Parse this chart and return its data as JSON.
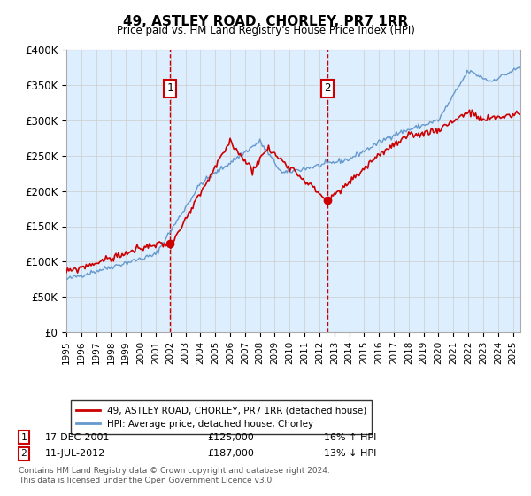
{
  "title": "49, ASTLEY ROAD, CHORLEY, PR7 1RR",
  "subtitle": "Price paid vs. HM Land Registry's House Price Index (HPI)",
  "ylim": [
    0,
    400000
  ],
  "yticks": [
    0,
    50000,
    100000,
    150000,
    200000,
    250000,
    300000,
    350000,
    400000
  ],
  "ytick_labels": [
    "£0",
    "£50K",
    "£100K",
    "£150K",
    "£200K",
    "£250K",
    "£300K",
    "£350K",
    "£400K"
  ],
  "sale1_price": 125000,
  "sale1_x": 2001.958,
  "sale1_label": "17-DEC-2001",
  "sale1_price_str": "£125,000",
  "sale1_hpi_pct": "16% ↑ HPI",
  "sale2_price": 187000,
  "sale2_x": 2012.542,
  "sale2_label": "11-JUL-2012",
  "sale2_price_str": "£187,000",
  "sale2_hpi_pct": "13% ↓ HPI",
  "legend_line1": "49, ASTLEY ROAD, CHORLEY, PR7 1RR (detached house)",
  "legend_line2": "HPI: Average price, detached house, Chorley",
  "footer1": "Contains HM Land Registry data © Crown copyright and database right 2024.",
  "footer2": "This data is licensed under the Open Government Licence v3.0.",
  "line_color_red": "#cc0000",
  "line_color_blue": "#6699cc",
  "bg_fill_color": "#ddeeff",
  "marker_box_color": "#cc0000",
  "vline_color": "#cc0000",
  "grid_color": "#cccccc"
}
